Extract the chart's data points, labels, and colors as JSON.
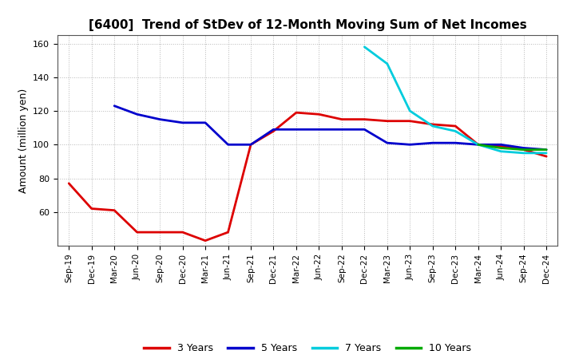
{
  "title": "[6400]  Trend of StDev of 12-Month Moving Sum of Net Incomes",
  "ylabel": "Amount (million yen)",
  "ylim": [
    40,
    165
  ],
  "yticks": [
    60,
    80,
    100,
    120,
    140,
    160
  ],
  "background_color": "#ffffff",
  "grid_color": "#888888",
  "x_labels": [
    "Sep-19",
    "Dec-19",
    "Mar-20",
    "Jun-20",
    "Sep-20",
    "Dec-20",
    "Mar-21",
    "Jun-21",
    "Sep-21",
    "Dec-21",
    "Mar-22",
    "Jun-22",
    "Sep-22",
    "Dec-22",
    "Mar-23",
    "Jun-23",
    "Sep-23",
    "Dec-23",
    "Mar-24",
    "Jun-24",
    "Sep-24",
    "Dec-24"
  ],
  "series": {
    "3 Years": {
      "color": "#dd0000",
      "linewidth": 2.0,
      "data_x": [
        0,
        1,
        2,
        3,
        4,
        5,
        6,
        7,
        8,
        9,
        10,
        11,
        12,
        13,
        14,
        15,
        16,
        17,
        18,
        19,
        20,
        21
      ],
      "data_y": [
        77,
        62,
        61,
        48,
        48,
        48,
        43,
        48,
        100,
        108,
        119,
        118,
        115,
        115,
        114,
        114,
        112,
        111,
        100,
        99,
        97,
        93
      ]
    },
    "5 Years": {
      "color": "#0000cc",
      "linewidth": 2.0,
      "data_x": [
        2,
        3,
        4,
        5,
        6,
        7,
        8,
        9,
        10,
        11,
        12,
        13,
        14,
        15,
        16,
        17,
        18,
        19,
        20,
        21
      ],
      "data_y": [
        123,
        118,
        115,
        113,
        113,
        100,
        100,
        109,
        109,
        109,
        109,
        109,
        101,
        100,
        101,
        101,
        100,
        100,
        98,
        97
      ]
    },
    "7 Years": {
      "color": "#00ccdd",
      "linewidth": 2.0,
      "data_x": [
        13,
        14,
        15,
        16,
        17,
        18,
        19,
        20,
        21
      ],
      "data_y": [
        158,
        148,
        120,
        111,
        108,
        100,
        96,
        95,
        95
      ]
    },
    "10 Years": {
      "color": "#00aa00",
      "linewidth": 2.0,
      "data_x": [
        18,
        19,
        20,
        21
      ],
      "data_y": [
        100,
        98,
        97,
        97
      ]
    }
  },
  "legend": {
    "labels": [
      "3 Years",
      "5 Years",
      "7 Years",
      "10 Years"
    ],
    "colors": [
      "#dd0000",
      "#0000cc",
      "#00ccdd",
      "#00aa00"
    ]
  }
}
